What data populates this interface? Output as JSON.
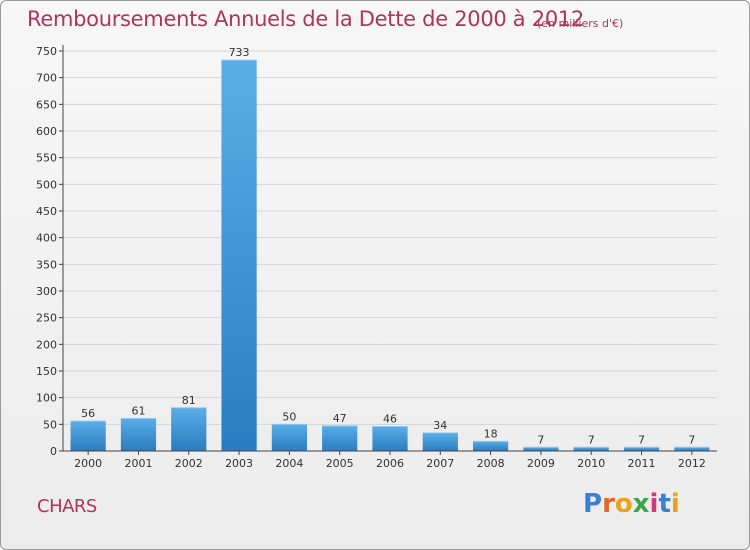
{
  "header": {
    "title": "Remboursements Annuels de la Dette de 2000 à 2012",
    "unit": "(en milliers d'€)"
  },
  "footer": {
    "commune": "CHARS",
    "brand": "Proxiti"
  },
  "colors": {
    "title": "#b0335f",
    "bar_light": "#5aaee8",
    "bar_dark": "#2a7cc0",
    "grid": "#d4d4d4",
    "axis": "#444444"
  },
  "chart_data": {
    "type": "bar",
    "title": "Remboursements Annuels de la Dette de 2000 à 2012",
    "subtitle": "(en milliers d'€)",
    "xlabel": "",
    "ylabel": "",
    "categories": [
      "2000",
      "2001",
      "2002",
      "2003",
      "2004",
      "2005",
      "2006",
      "2007",
      "2008",
      "2009",
      "2010",
      "2011",
      "2012"
    ],
    "values": [
      56,
      61,
      81,
      733,
      50,
      47,
      46,
      34,
      18,
      7,
      7,
      7,
      7
    ],
    "ylim": [
      0,
      750
    ],
    "yticks": [
      0,
      50,
      100,
      150,
      200,
      250,
      300,
      350,
      400,
      450,
      500,
      550,
      600,
      650,
      700,
      750
    ],
    "grid": true,
    "legend": "none"
  }
}
